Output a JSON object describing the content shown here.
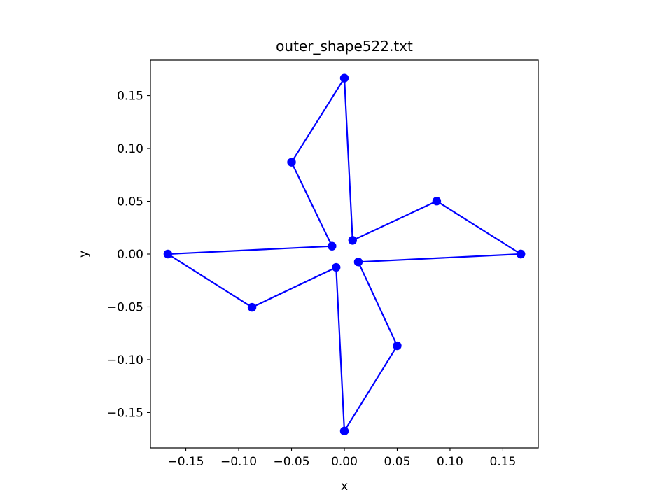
{
  "chart_data": {
    "type": "line",
    "title": "outer_shape522.txt",
    "xlabel": "x",
    "ylabel": "y",
    "xlim": [
      -0.1835,
      0.1835
    ],
    "ylim": [
      -0.1835,
      0.1835
    ],
    "xticks": [
      -0.15,
      -0.1,
      -0.05,
      0.0,
      0.05,
      0.1,
      0.15
    ],
    "xtick_labels": [
      "−0.15",
      "−0.10",
      "−0.05",
      "0.00",
      "0.05",
      "0.10",
      "0.15"
    ],
    "yticks": [
      0.15,
      0.1,
      0.05,
      0.0,
      -0.05,
      -0.1,
      -0.15
    ],
    "ytick_labels": [
      "0.15",
      "0.10",
      "0.05",
      "0.00",
      "−0.05",
      "−0.10",
      "−0.15"
    ],
    "grid": false,
    "series": [
      {
        "color": "#0000ff",
        "marker": "circle",
        "x": [
          0.167,
          0.0874,
          0.0078,
          0.0,
          -0.05,
          -0.0117,
          -0.167,
          -0.0874,
          -0.0078,
          0.0,
          0.05,
          0.0132,
          0.167
        ],
        "y": [
          0.0,
          0.0502,
          0.013,
          0.1665,
          0.087,
          0.0075,
          0.0,
          -0.0504,
          -0.0126,
          -0.1675,
          -0.0868,
          -0.0075,
          0.0
        ]
      }
    ]
  }
}
